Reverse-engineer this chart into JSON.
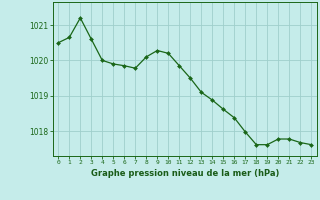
{
  "x": [
    0,
    1,
    2,
    3,
    4,
    5,
    6,
    7,
    8,
    9,
    10,
    11,
    12,
    13,
    14,
    15,
    16,
    17,
    18,
    19,
    20,
    21,
    22,
    23
  ],
  "y": [
    1020.5,
    1020.65,
    1021.2,
    1020.6,
    1020.0,
    1019.9,
    1019.85,
    1019.78,
    1020.1,
    1020.28,
    1020.2,
    1019.85,
    1019.5,
    1019.1,
    1018.88,
    1018.62,
    1018.38,
    1017.98,
    1017.62,
    1017.62,
    1017.78,
    1017.78,
    1017.68,
    1017.62
  ],
  "line_color": "#1a6618",
  "marker_color": "#1a6618",
  "bg_color": "#c5ecea",
  "grid_color": "#9fcfcc",
  "xlabel": "Graphe pression niveau de la mer (hPa)",
  "xlabel_color": "#1a5c18",
  "ylabel_ticks": [
    1018,
    1019,
    1020,
    1021
  ],
  "xlim": [
    -0.5,
    23.5
  ],
  "ylim": [
    1017.3,
    1021.65
  ],
  "tick_color": "#1a6618",
  "border_color": "#1a6618"
}
